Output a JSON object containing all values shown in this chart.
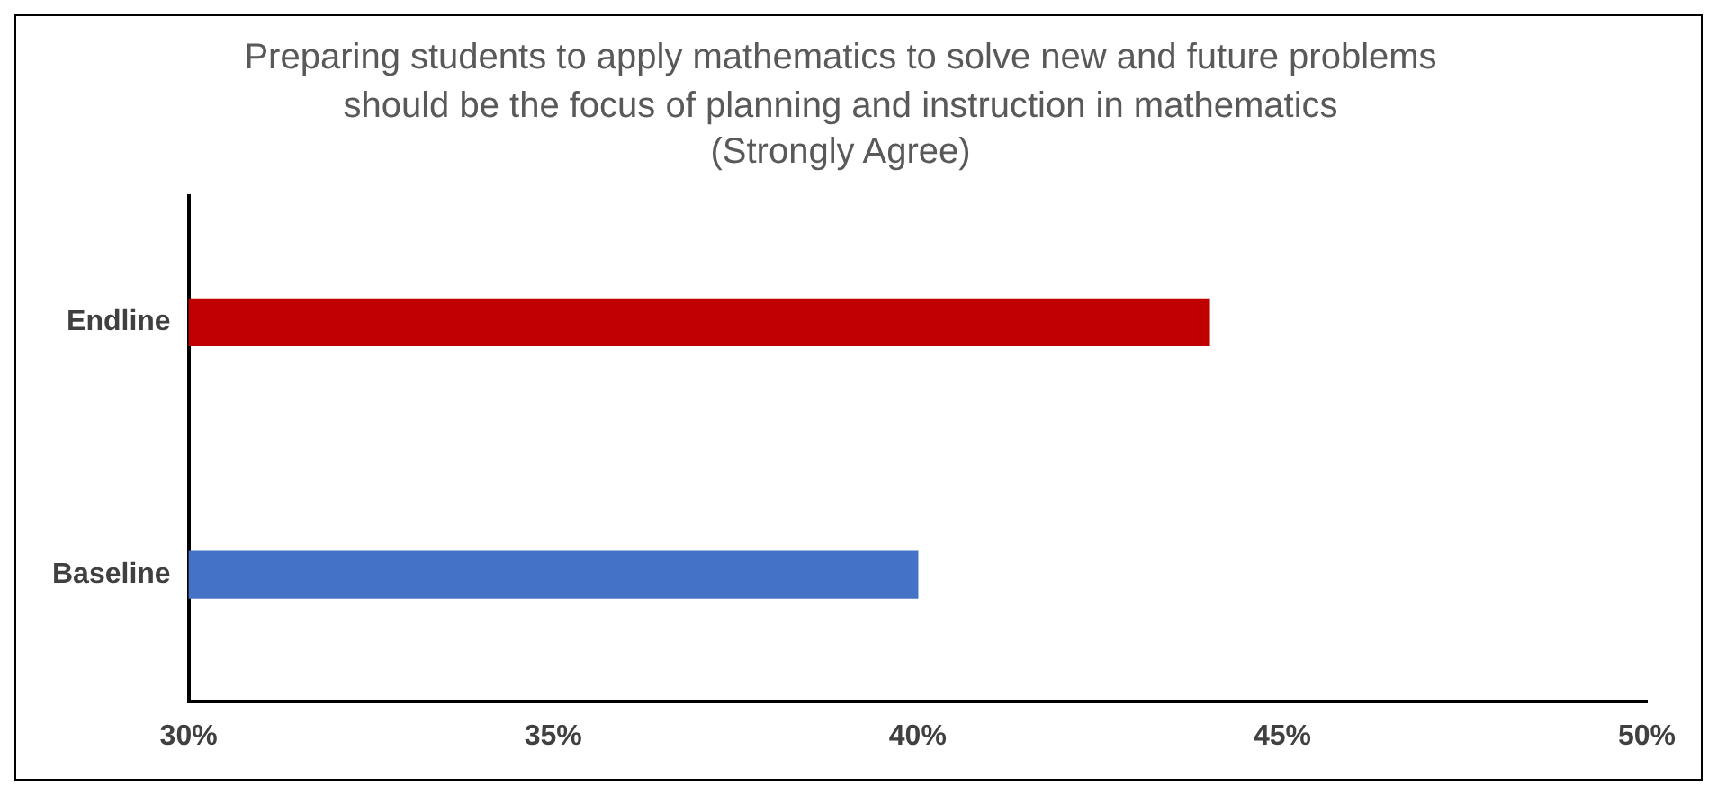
{
  "chart_data": {
    "type": "bar",
    "orientation": "horizontal",
    "title": "Preparing students to apply mathematics to solve new and future problems should be the focus of planning and instruction in mathematics",
    "subtitle": "(Strongly Agree)",
    "categories": [
      "Endline",
      "Baseline"
    ],
    "values": [
      44,
      40
    ],
    "colors": [
      "#c00000",
      "#4472c4"
    ],
    "xlim": [
      30,
      50
    ],
    "xticks": [
      {
        "value": 30,
        "label": "30%"
      },
      {
        "value": 35,
        "label": "35%"
      },
      {
        "value": 40,
        "label": "40%"
      },
      {
        "value": 45,
        "label": "45%"
      },
      {
        "value": 50,
        "label": "50%"
      }
    ],
    "grid": false,
    "legend": false
  }
}
